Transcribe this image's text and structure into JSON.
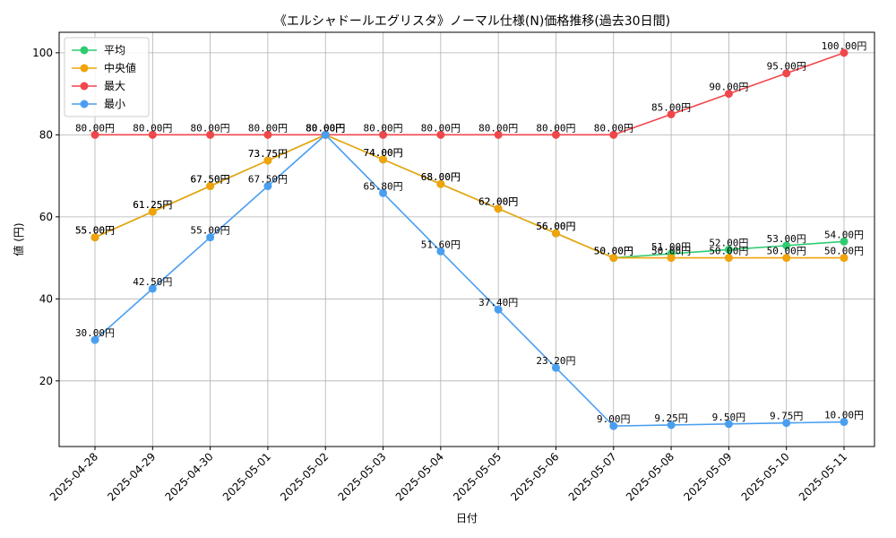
{
  "chart_data": {
    "type": "line",
    "title": "《エルシャドールエグリスタ》ノーマル仕様(N)価格推移(過去30日間)",
    "xlabel": "日付",
    "ylabel": "値 (円)",
    "x": [
      "2025-04-28",
      "2025-04-29",
      "2025-04-30",
      "2025-05-01",
      "2025-05-02",
      "2025-05-03",
      "2025-05-04",
      "2025-05-05",
      "2025-05-06",
      "2025-05-07",
      "2025-05-08",
      "2025-05-09",
      "2025-05-10",
      "2025-05-11"
    ],
    "ylim": [
      4,
      105
    ],
    "yticks": [
      20,
      40,
      60,
      80,
      100
    ],
    "grid": true,
    "legend_position": "top-left",
    "label_suffix": "円",
    "series": [
      {
        "name": "平均",
        "color": "#2ecc71",
        "values": [
          55.0,
          61.25,
          67.5,
          73.75,
          80.0,
          74.0,
          68.0,
          62.0,
          56.0,
          50.0,
          51.0,
          52.0,
          53.0,
          54.0
        ]
      },
      {
        "name": "中央値",
        "color": "#f0a30a",
        "values": [
          55.0,
          61.25,
          67.5,
          73.75,
          80.0,
          74.0,
          68.0,
          62.0,
          56.0,
          50.0,
          50.0,
          50.0,
          50.0,
          50.0
        ]
      },
      {
        "name": "最大",
        "color": "#f0474b",
        "values": [
          80.0,
          80.0,
          80.0,
          80.0,
          80.0,
          80.0,
          80.0,
          80.0,
          80.0,
          80.0,
          85.0,
          90.0,
          95.0,
          100.0
        ]
      },
      {
        "name": "最小",
        "color": "#4a9ef0",
        "values": [
          30.0,
          42.5,
          55.0,
          67.5,
          80.0,
          65.8,
          51.6,
          37.4,
          23.2,
          9.0,
          9.25,
          9.5,
          9.75,
          10.0
        ]
      }
    ]
  }
}
